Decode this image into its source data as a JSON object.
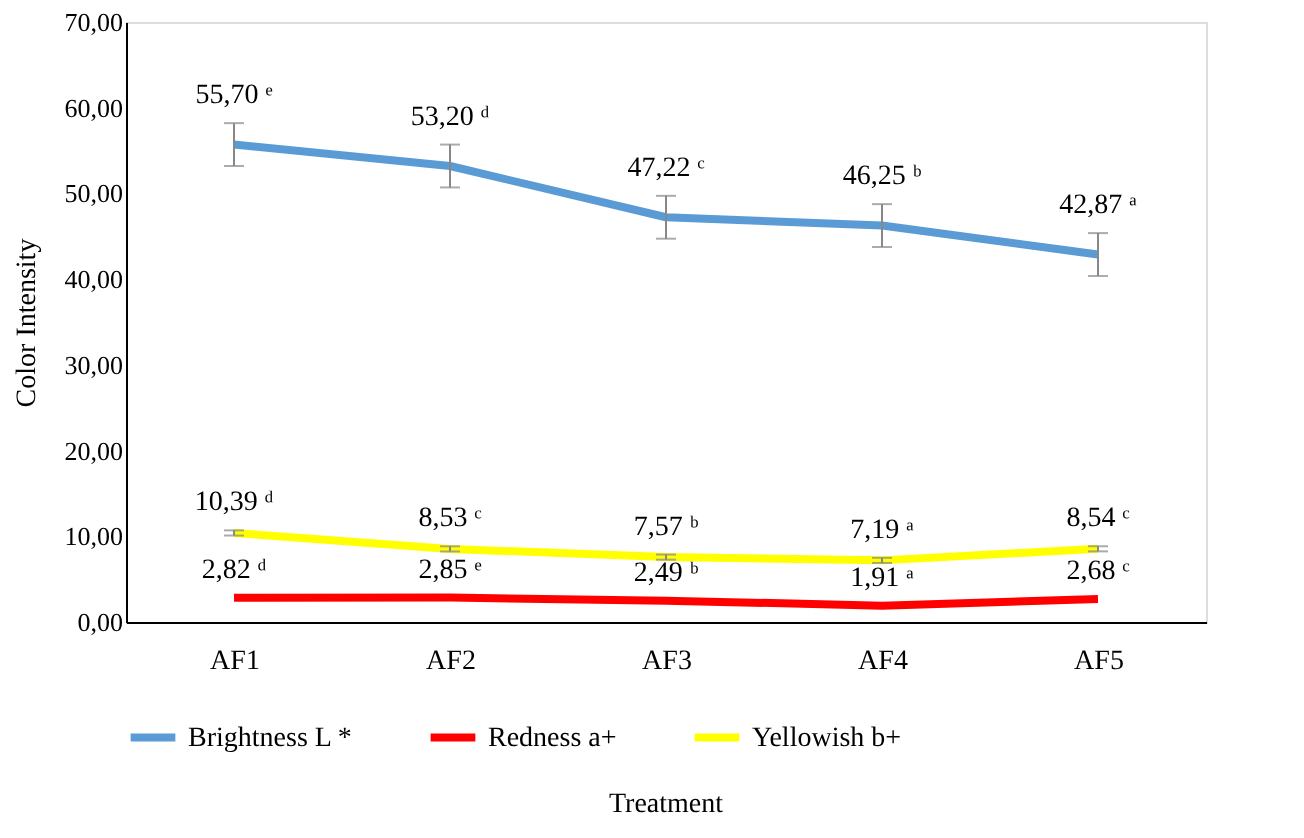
{
  "chart_data": {
    "type": "line",
    "ylabel": "Color Intensity",
    "xlabel": "Treatment",
    "categories": [
      "AF1",
      "AF2",
      "AF3",
      "AF4",
      "AF5"
    ],
    "series": [
      {
        "name": "Brightness L *",
        "color": "#5b9bd5",
        "values": [
          55.7,
          53.2,
          47.22,
          46.25,
          42.87
        ],
        "errors": [
          2.5,
          2.5,
          2.5,
          2.5,
          2.5
        ],
        "value_labels": [
          "55,70 ᵉ",
          "53,20 ᵈ",
          "47,22 ᶜ",
          "46,25 ᵇ",
          "42,87 ᵃ"
        ]
      },
      {
        "name": "Redness a+",
        "color": "#ff0000",
        "values": [
          2.82,
          2.85,
          2.49,
          1.91,
          2.68
        ],
        "value_labels": [
          "2,82 ᵈ",
          "2,85 ᵉ",
          "2,49 ᵇ",
          "1,91 ᵃ",
          "2,68 ᶜ"
        ]
      },
      {
        "name": "Yellowish b+",
        "color": "#ffff00",
        "values": [
          10.39,
          8.53,
          7.57,
          7.19,
          8.54
        ],
        "errors": [
          0.3,
          0.3,
          0.3,
          0.3,
          0.3
        ],
        "value_labels": [
          "10,39 ᵈ",
          "8,53 ᶜ",
          "7,57 ᵇ",
          "7,19 ᵃ",
          "8,54 ᶜ"
        ]
      }
    ],
    "ylim": [
      0,
      70
    ],
    "yticks": [
      {
        "value": 0,
        "label": "0,00"
      },
      {
        "value": 10,
        "label": "10,00"
      },
      {
        "value": 20,
        "label": "20,00"
      },
      {
        "value": 30,
        "label": "30,00"
      },
      {
        "value": 40,
        "label": "40,00"
      },
      {
        "value": 50,
        "label": "50,00"
      },
      {
        "value": 60,
        "label": "60,00"
      },
      {
        "value": 70,
        "label": "70,00"
      }
    ],
    "grid": false,
    "legend": "bottom",
    "marker": "none",
    "line_style": "solid"
  }
}
